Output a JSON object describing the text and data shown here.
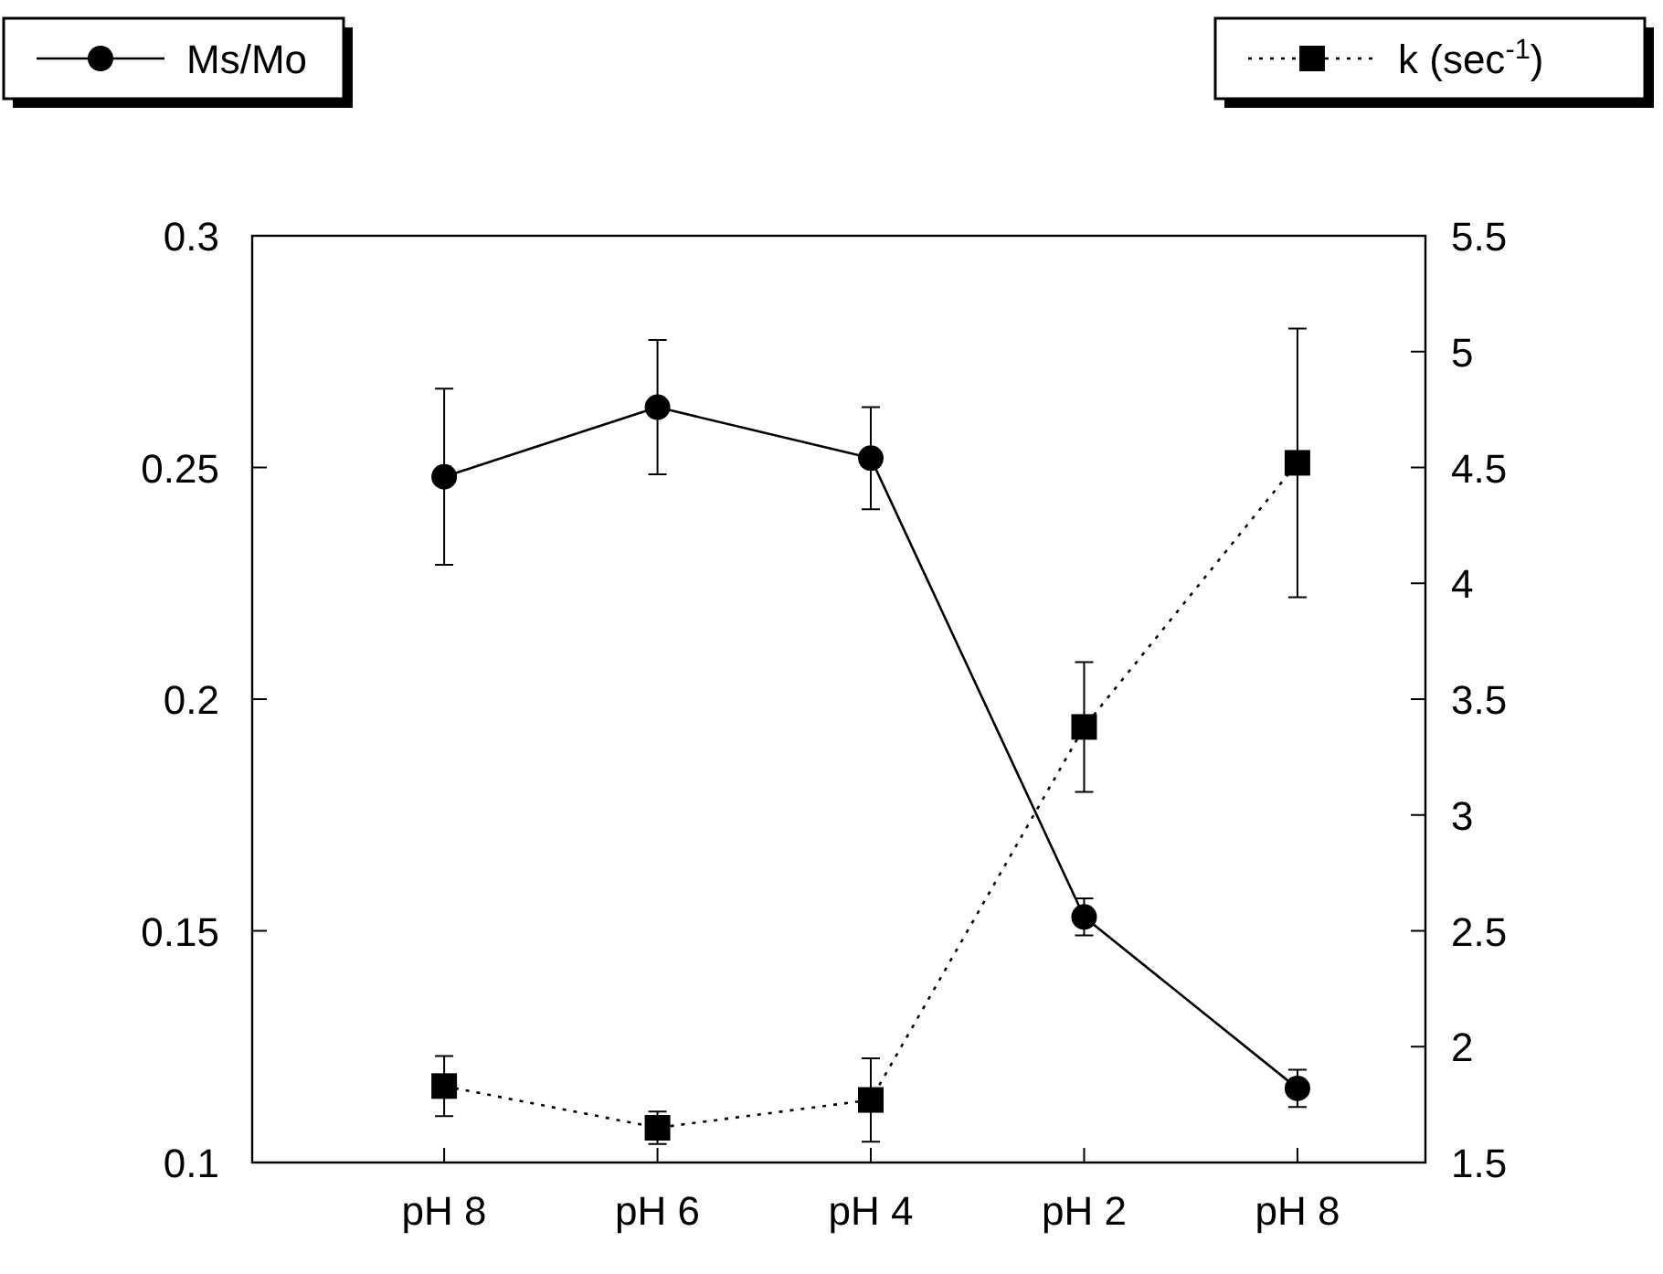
{
  "chart_data": {
    "type": "line",
    "categories": [
      "pH 8",
      "pH 6",
      "pH 4",
      "pH 2",
      "pH 8"
    ],
    "series": [
      {
        "name": "Ms/Mo",
        "color": "#000000",
        "values": [
          0.248,
          0.263,
          0.252,
          0.153,
          0.116
        ],
        "errors": [
          0.019,
          0.0145,
          0.011,
          0.004,
          0.004
        ],
        "marker": "circle",
        "line_style": "solid"
      },
      {
        "name": "k  (sec$^{-1}$)",
        "color": "#000000",
        "values": [
          1.83,
          1.65,
          1.77,
          3.38,
          4.52
        ],
        "errors": [
          0.13,
          0.07,
          0.18,
          0.28,
          0.58
        ],
        "marker": "square",
        "line_style": "dotted",
        "axis": "y2"
      }
    ],
    "ylim": [
      0.1,
      0.3
    ],
    "yticks": [
      0.1,
      0.15,
      0.2,
      0.25,
      0.3
    ],
    "y2lim": [
      1.5,
      5.5
    ],
    "y2ticks": [
      1.5,
      2,
      2.5,
      3,
      3.5,
      4,
      4.5,
      5,
      5.5
    ],
    "legend": "top",
    "grid": false
  }
}
